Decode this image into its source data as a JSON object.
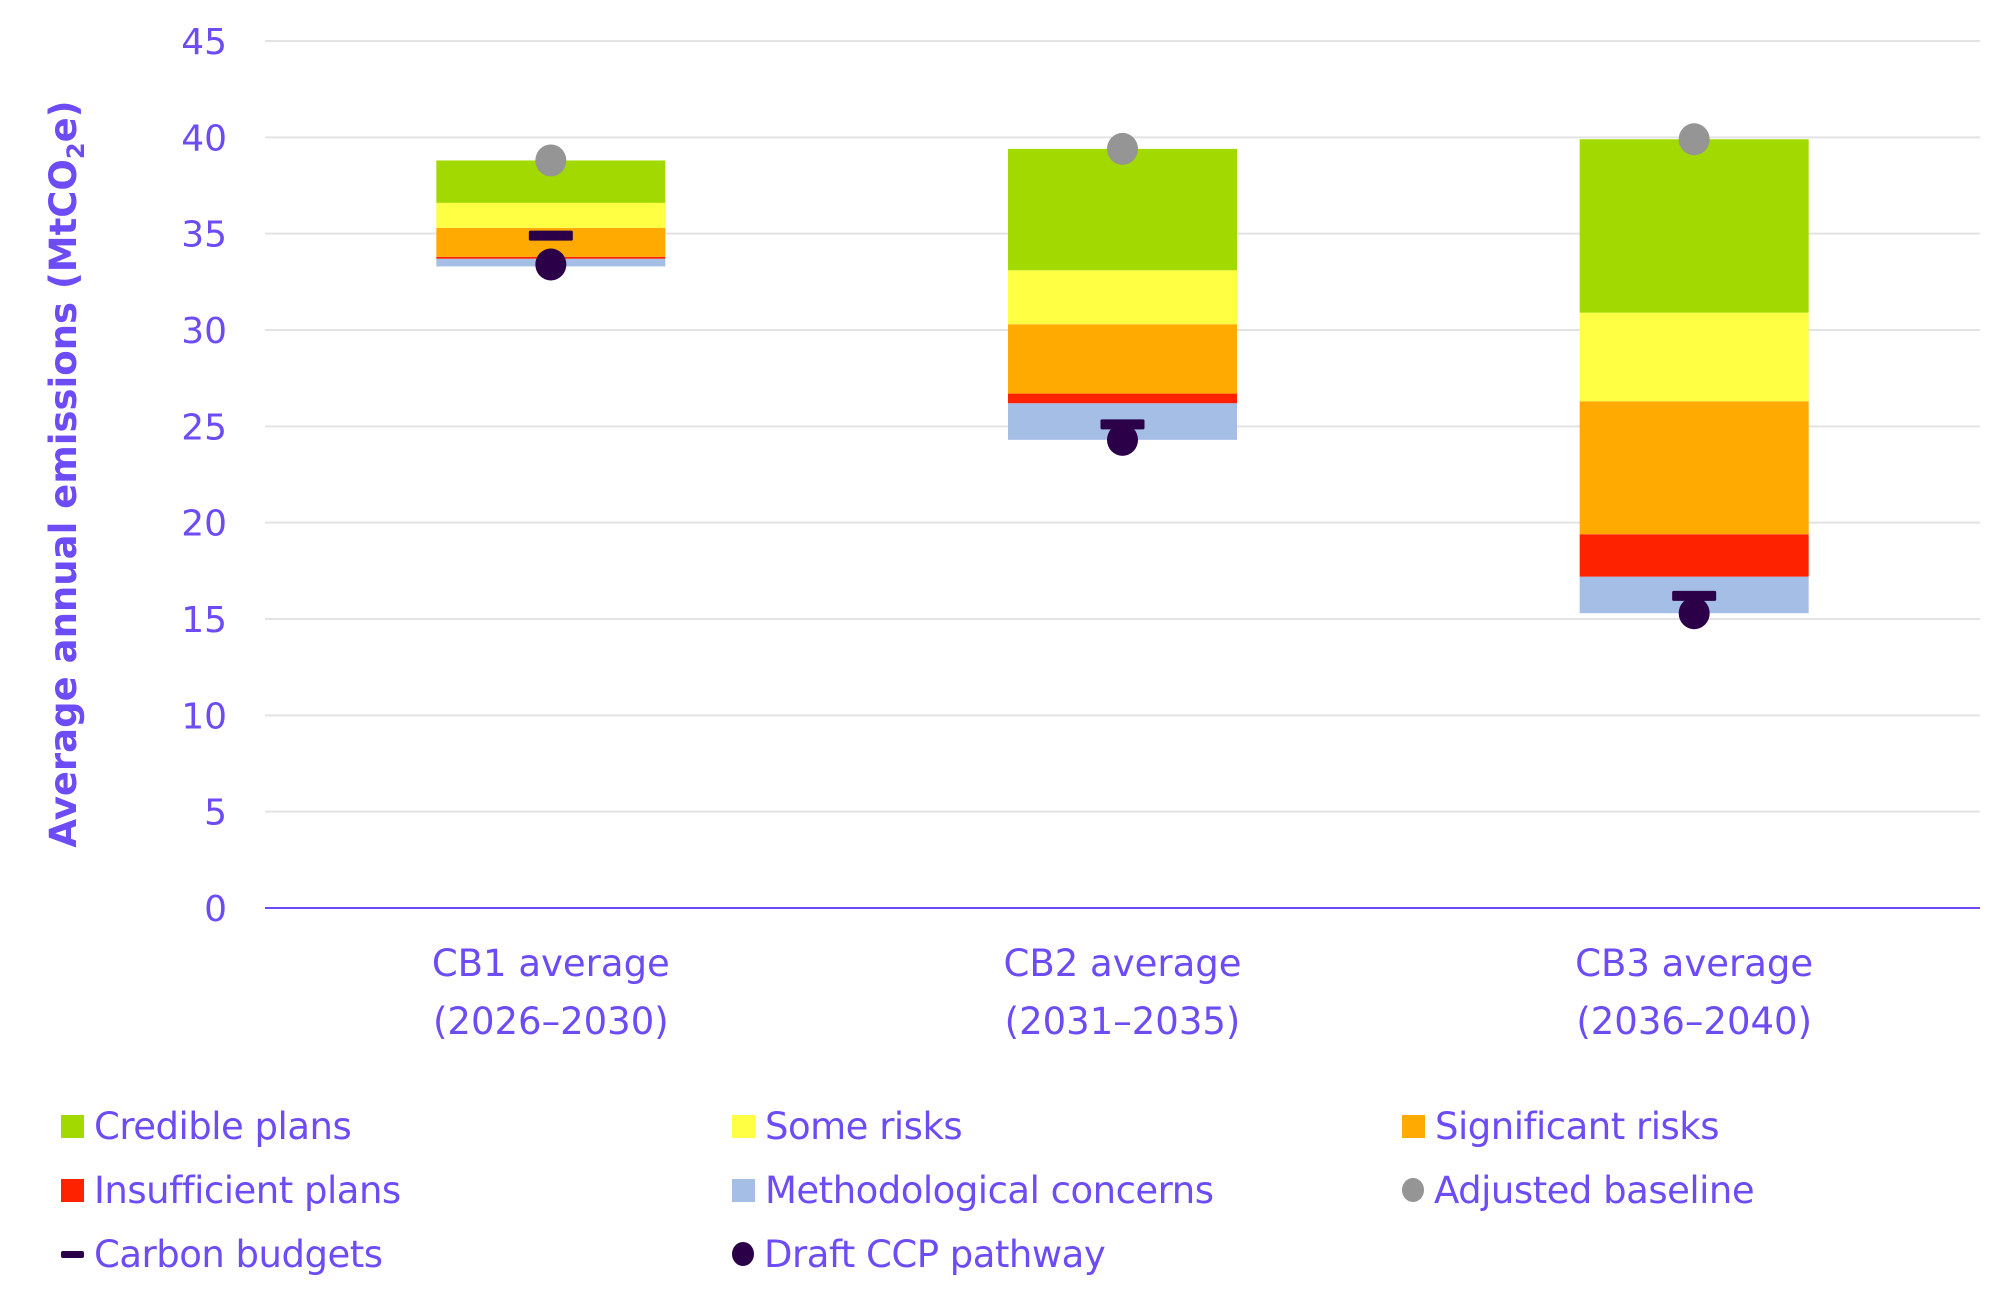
{
  "chart_data": {
    "type": "bar",
    "stacked": true,
    "title": "",
    "xlabel": "",
    "ylabel": "Average annual emissions (MtCO₂e)",
    "ylabel_parts": {
      "pre": "Average annual emissions (MtCO",
      "sub": "2",
      "post": "e)"
    },
    "ylim": [
      0,
      45
    ],
    "yticks": [
      0,
      5,
      10,
      15,
      20,
      25,
      30,
      35,
      40,
      45
    ],
    "grid": true,
    "legend_position": "bottom",
    "categories": [
      {
        "line1": "CB1 average",
        "line2": "(2026–2030)"
      },
      {
        "line1": "CB2 average",
        "line2": "(2031–2035)"
      },
      {
        "line1": "CB3 average",
        "line2": "(2036–2040)"
      }
    ],
    "stack_base": [
      33.3,
      24.3,
      15.3
    ],
    "series": [
      {
        "name": "Methodological concerns",
        "color": "#A4BEE6",
        "values": [
          0.4,
          1.9,
          1.9
        ]
      },
      {
        "name": "Insufficient plans",
        "color": "#FF2200",
        "values": [
          0.1,
          0.5,
          2.2
        ]
      },
      {
        "name": "Significant risks",
        "color": "#FFAA00",
        "values": [
          1.5,
          3.6,
          6.9
        ]
      },
      {
        "name": "Some risks",
        "color": "#FFFF44",
        "values": [
          1.3,
          2.8,
          4.6
        ]
      },
      {
        "name": "Credible plans",
        "color": "#A2D900",
        "values": [
          2.2,
          6.3,
          9.0
        ]
      }
    ],
    "markers": [
      {
        "name": "Adjusted baseline",
        "shape": "dot",
        "color": "#959595",
        "values": [
          38.8,
          39.4,
          39.9
        ]
      },
      {
        "name": "Carbon budgets",
        "shape": "dash",
        "color": "#2B0049",
        "values": [
          34.9,
          25.1,
          16.2
        ]
      },
      {
        "name": "Draft CCP pathway",
        "shape": "dot",
        "color": "#2B0049",
        "values": [
          33.4,
          24.3,
          15.3
        ]
      }
    ]
  },
  "legend": [
    {
      "label": "Credible plans",
      "shape": "square",
      "color": "#A2D900"
    },
    {
      "label": "Some risks",
      "shape": "square",
      "color": "#FFFF44"
    },
    {
      "label": "Significant risks",
      "shape": "square",
      "color": "#FFAA00"
    },
    {
      "label": "Insufficient plans",
      "shape": "square",
      "color": "#FF2200"
    },
    {
      "label": "Methodological concerns",
      "shape": "square",
      "color": "#A4BEE6"
    },
    {
      "label": "Adjusted baseline",
      "shape": "dot",
      "color": "#959595"
    },
    {
      "label": "Carbon budgets",
      "shape": "dash",
      "color": "#2B0049"
    },
    {
      "label": "Draft CCP pathway",
      "shape": "dot",
      "color": "#2B0049"
    }
  ],
  "colors": {
    "text": "#6D4BF5",
    "gridline": "#E3E3E3",
    "axis": "#6D4BF5"
  }
}
